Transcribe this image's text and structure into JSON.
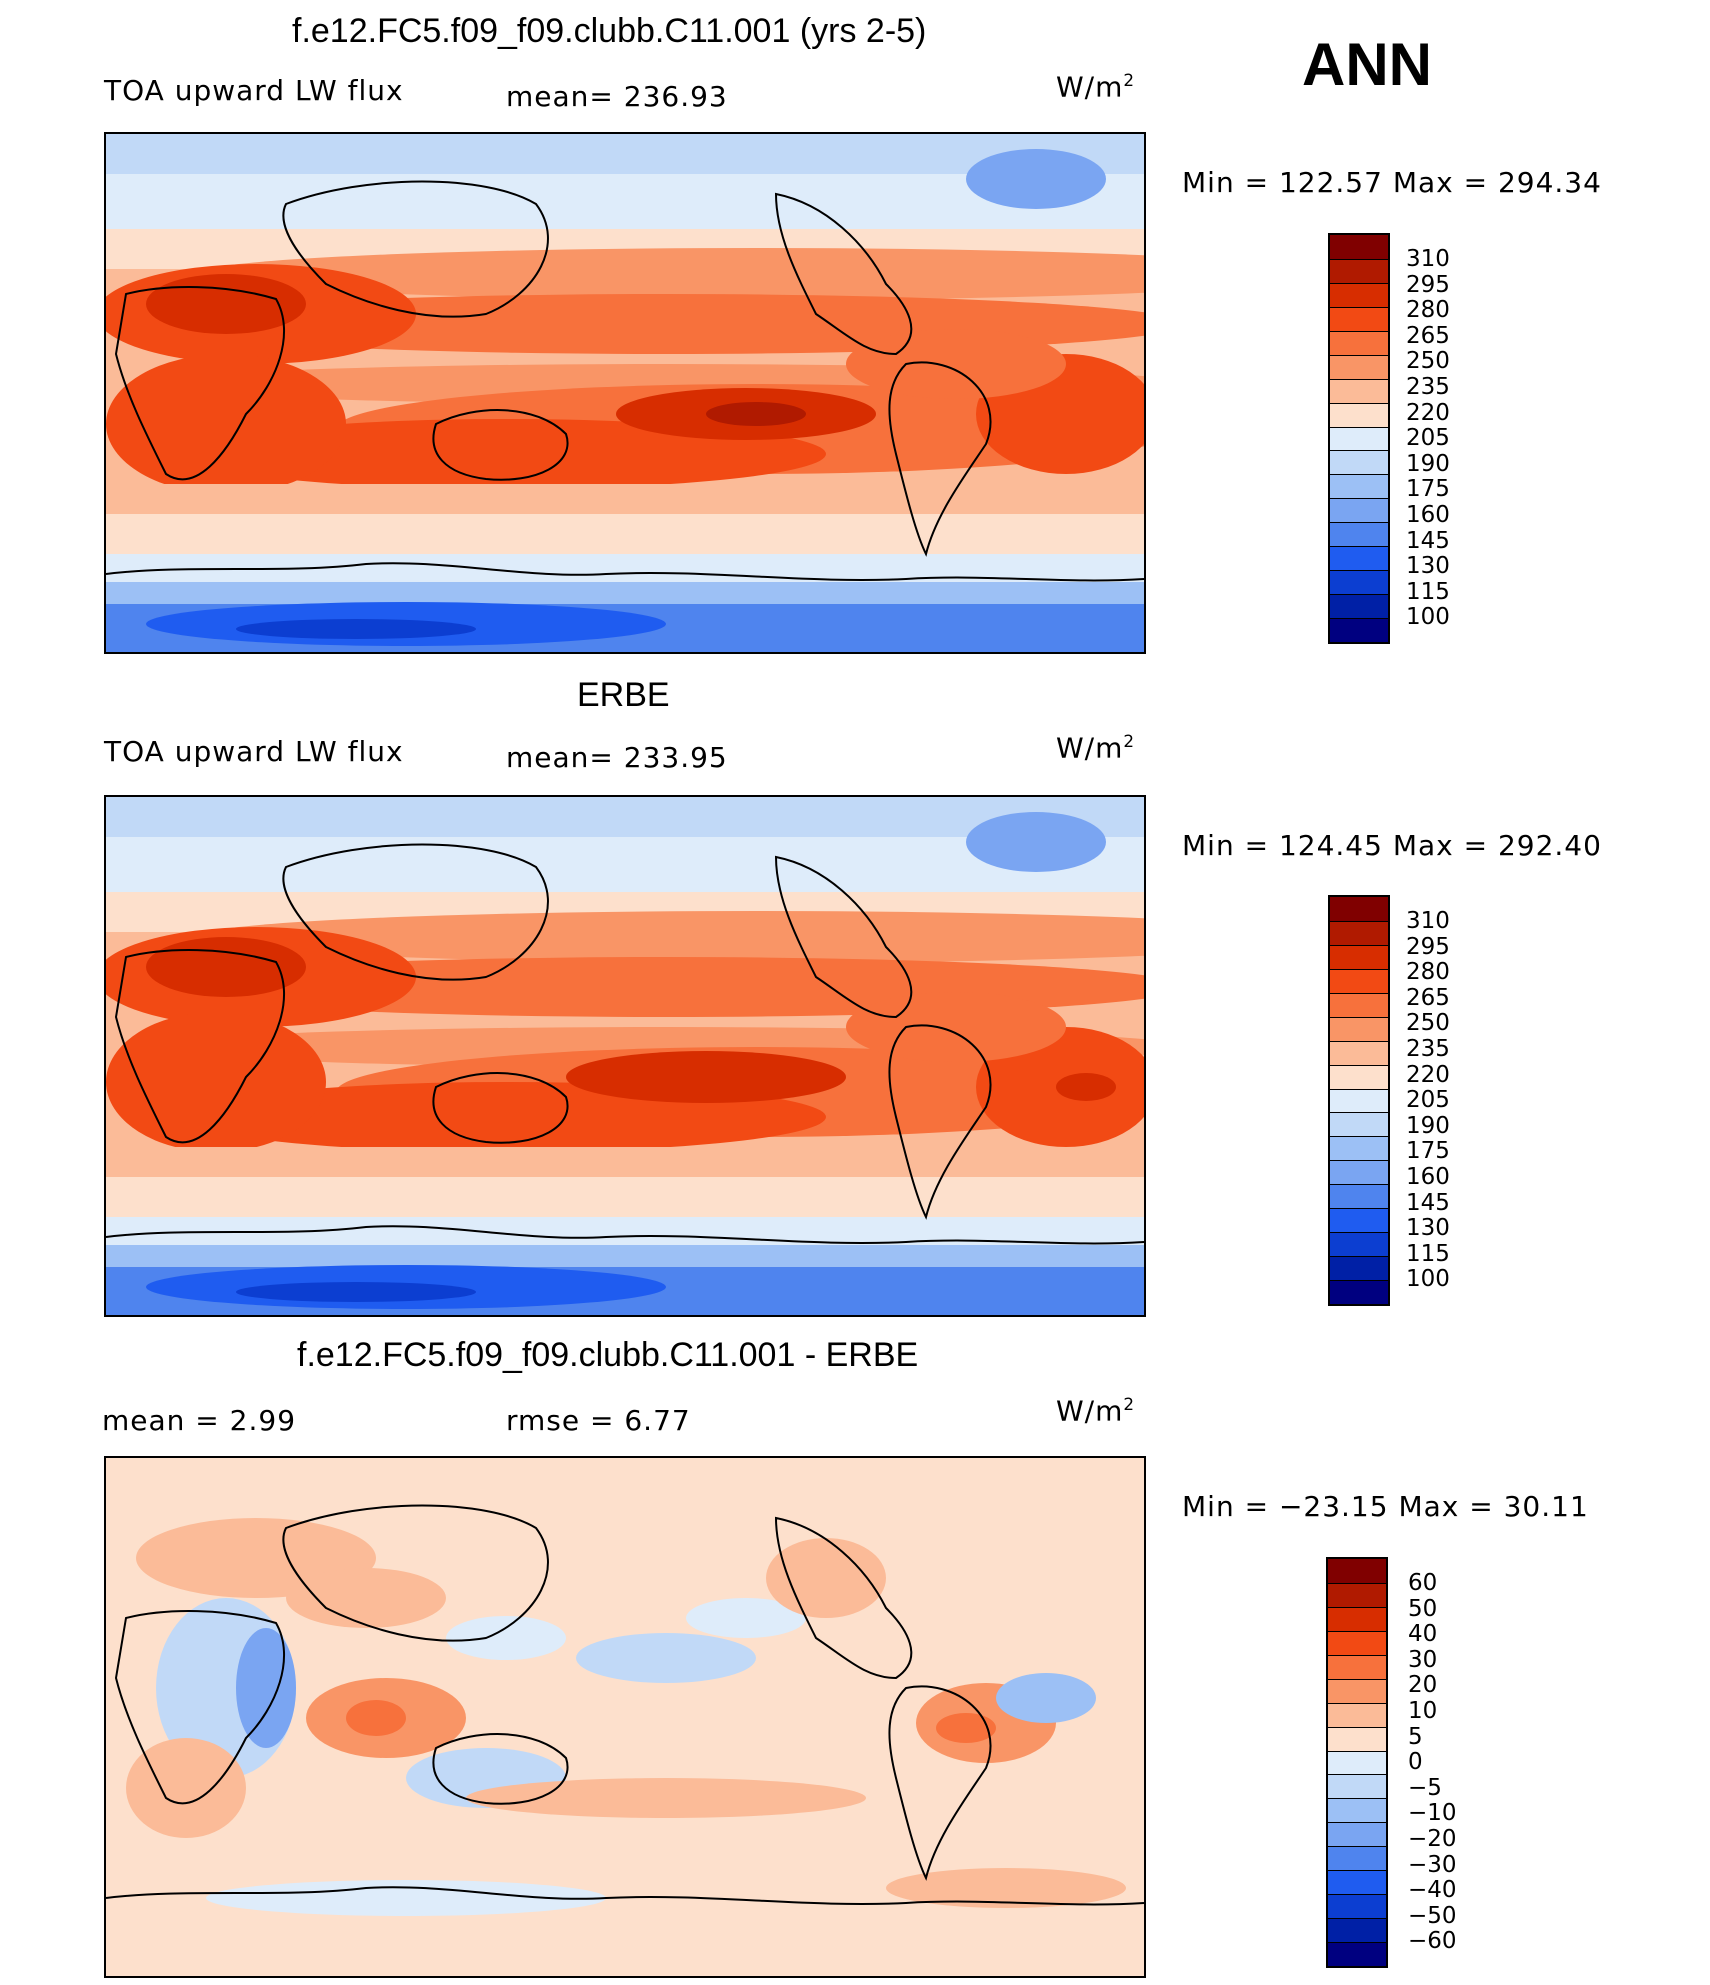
{
  "season": "ANN",
  "panels": [
    {
      "title": "f.e12.FC5.f09_f09.clubb.C11.001 (yrs 2-5)",
      "left_label": "TOA upward LW flux",
      "mid_label": "mean= 236.93",
      "units": "W/m",
      "units_exp": "2",
      "minmax": "Min = 122.57 Max = 294.34",
      "colorbar": {
        "ticks": [
          "310",
          "295",
          "280",
          "265",
          "250",
          "235",
          "220",
          "205",
          "190",
          "175",
          "160",
          "145",
          "130",
          "115",
          "100"
        ],
        "colors": [
          "#800000",
          "#b01a00",
          "#d72d00",
          "#f24a14",
          "#f7713c",
          "#f99566",
          "#fbbb98",
          "#fde0cc",
          "#deecfa",
          "#c1d9f7",
          "#9cc0f5",
          "#7aa5f2",
          "#4f84ee",
          "#1f5cf0",
          "#0c3ed1",
          "#0020a6",
          "#000080"
        ]
      }
    },
    {
      "title": "ERBE",
      "left_label": "TOA upward LW flux",
      "mid_label": "mean= 233.95",
      "units": "W/m",
      "units_exp": "2",
      "minmax": "Min = 124.45 Max = 292.40",
      "colorbar": {
        "ticks": [
          "310",
          "295",
          "280",
          "265",
          "250",
          "235",
          "220",
          "205",
          "190",
          "175",
          "160",
          "145",
          "130",
          "115",
          "100"
        ],
        "colors": [
          "#800000",
          "#b01a00",
          "#d72d00",
          "#f24a14",
          "#f7713c",
          "#f99566",
          "#fbbb98",
          "#fde0cc",
          "#deecfa",
          "#c1d9f7",
          "#9cc0f5",
          "#7aa5f2",
          "#4f84ee",
          "#1f5cf0",
          "#0c3ed1",
          "#0020a6",
          "#000080"
        ]
      }
    },
    {
      "title": "f.e12.FC5.f09_f09.clubb.C11.001 - ERBE",
      "left_label": "mean = 2.99",
      "mid_label": "rmse = 6.77",
      "units": "W/m",
      "units_exp": "2",
      "minmax": "Min = −23.15 Max = 30.11",
      "colorbar": {
        "ticks": [
          "60",
          "50",
          "40",
          "30",
          "20",
          "10",
          "5",
          "0",
          "−5",
          "−10",
          "−20",
          "−30",
          "−40",
          "−50",
          "−60"
        ],
        "colors": [
          "#800000",
          "#b01a00",
          "#d72d00",
          "#f24a14",
          "#f7713c",
          "#f99566",
          "#fbbb98",
          "#fde0cc",
          "#deecfa",
          "#c1d9f7",
          "#9cc0f5",
          "#7aa5f2",
          "#4f84ee",
          "#1f5cf0",
          "#0c3ed1",
          "#0020a6",
          "#000080"
        ]
      }
    }
  ],
  "chart_data": [
    {
      "type": "heatmap",
      "title": "f.e12.FC5.f09_f09.clubb.C11.001 (yrs 2-5)",
      "variable": "TOA upward LW flux",
      "units": "W/m2",
      "mean": 236.93,
      "min": 122.57,
      "max": 294.34,
      "levels": [
        100,
        115,
        130,
        145,
        160,
        175,
        190,
        205,
        220,
        235,
        250,
        265,
        280,
        295,
        310
      ],
      "season": "ANN"
    },
    {
      "type": "heatmap",
      "title": "ERBE",
      "variable": "TOA upward LW flux",
      "units": "W/m2",
      "mean": 233.95,
      "min": 124.45,
      "max": 292.4,
      "levels": [
        100,
        115,
        130,
        145,
        160,
        175,
        190,
        205,
        220,
        235,
        250,
        265,
        280,
        295,
        310
      ],
      "season": "ANN"
    },
    {
      "type": "heatmap",
      "title": "f.e12.FC5.f09_f09.clubb.C11.001 - ERBE",
      "units": "W/m2",
      "mean": 2.99,
      "rmse": 6.77,
      "min": -23.15,
      "max": 30.11,
      "levels": [
        -60,
        -50,
        -40,
        -30,
        -20,
        -10,
        -5,
        0,
        5,
        10,
        20,
        30,
        40,
        50,
        60
      ],
      "season": "ANN"
    }
  ]
}
